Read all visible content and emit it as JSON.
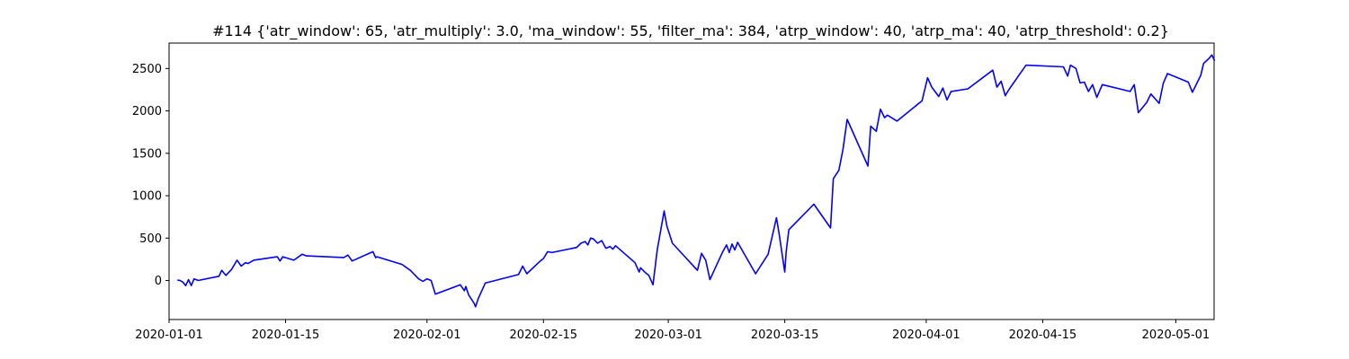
{
  "chart_data": {
    "type": "line",
    "title": "#114 {'atr_window': 65, 'atr_multiply': 3.0, 'ma_window': 55, 'filter_ma': 384, 'atrp_window': 40, 'atrp_ma': 40, 'atrp_threshold': 0.2}",
    "xlabel": "",
    "ylabel": "",
    "x_type": "date",
    "xlim": [
      "2020-01-01",
      "2020-05-03"
    ],
    "ylim": [
      -460,
      2800
    ],
    "xticks": [
      "2020-01-01",
      "2020-01-15",
      "2020-02-01",
      "2020-02-15",
      "2020-03-01",
      "2020-03-15",
      "2020-04-01",
      "2020-04-15",
      "2020-05-01"
    ],
    "yticks": [
      0,
      500,
      1000,
      1500,
      2000,
      2500
    ],
    "grid": false,
    "legend": "none",
    "series": [
      {
        "color": "#0000ff",
        "points": [
          [
            "2020-01-02T00:00",
            5
          ],
          [
            "2020-01-02T08:00",
            0
          ],
          [
            "2020-01-02T16:00",
            -20
          ],
          [
            "2020-01-03T00:00",
            -60
          ],
          [
            "2020-01-03T08:00",
            10
          ],
          [
            "2020-01-03T16:00",
            -60
          ],
          [
            "2020-01-04T00:00",
            20
          ],
          [
            "2020-01-04T12:00",
            0
          ],
          [
            "2020-01-07T00:00",
            50
          ],
          [
            "2020-01-07T08:00",
            120
          ],
          [
            "2020-01-07T20:00",
            60
          ],
          [
            "2020-01-08T12:00",
            130
          ],
          [
            "2020-01-09T04:00",
            240
          ],
          [
            "2020-01-09T16:00",
            170
          ],
          [
            "2020-01-10T04:00",
            210
          ],
          [
            "2020-01-10T12:00",
            200
          ],
          [
            "2020-01-11T04:00",
            240
          ],
          [
            "2020-01-14T00:00",
            280
          ],
          [
            "2020-01-14T08:00",
            230
          ],
          [
            "2020-01-14T16:00",
            280
          ],
          [
            "2020-01-16T00:00",
            240
          ],
          [
            "2020-01-17T00:00",
            310
          ],
          [
            "2020-01-17T12:00",
            290
          ],
          [
            "2020-01-22T00:00",
            270
          ],
          [
            "2020-01-22T12:00",
            300
          ],
          [
            "2020-01-23T00:00",
            230
          ],
          [
            "2020-01-25T12:00",
            340
          ],
          [
            "2020-01-25T20:00",
            270
          ],
          [
            "2020-01-26T00:00",
            280
          ],
          [
            "2020-01-29T00:00",
            190
          ],
          [
            "2020-01-30T00:00",
            120
          ],
          [
            "2020-01-30T12:00",
            70
          ],
          [
            "2020-01-31T00:00",
            20
          ],
          [
            "2020-01-31T12:00",
            -10
          ],
          [
            "2020-02-01T00:00",
            20
          ],
          [
            "2020-02-01T12:00",
            0
          ],
          [
            "2020-02-02T00:00",
            -160
          ],
          [
            "2020-02-05T00:00",
            -50
          ],
          [
            "2020-02-05T12:00",
            -120
          ],
          [
            "2020-02-05T16:00",
            -70
          ],
          [
            "2020-02-06T00:00",
            -170
          ],
          [
            "2020-02-06T16:00",
            -270
          ],
          [
            "2020-02-06T20:00",
            -310
          ],
          [
            "2020-02-07T04:00",
            -210
          ],
          [
            "2020-02-08T00:00",
            -30
          ],
          [
            "2020-02-12T00:00",
            70
          ],
          [
            "2020-02-12T12:00",
            170
          ],
          [
            "2020-02-13T00:00",
            80
          ],
          [
            "2020-02-14T12:00",
            220
          ],
          [
            "2020-02-15T00:00",
            260
          ],
          [
            "2020-02-15T12:00",
            340
          ],
          [
            "2020-02-16T00:00",
            330
          ],
          [
            "2020-02-19T00:00",
            390
          ],
          [
            "2020-02-19T12:00",
            440
          ],
          [
            "2020-02-20T00:00",
            460
          ],
          [
            "2020-02-20T08:00",
            420
          ],
          [
            "2020-02-20T16:00",
            500
          ],
          [
            "2020-02-21T00:00",
            490
          ],
          [
            "2020-02-21T12:00",
            440
          ],
          [
            "2020-02-22T00:00",
            470
          ],
          [
            "2020-02-22T12:00",
            380
          ],
          [
            "2020-02-23T00:00",
            400
          ],
          [
            "2020-02-23T08:00",
            370
          ],
          [
            "2020-02-23T16:00",
            410
          ],
          [
            "2020-02-26T00:00",
            210
          ],
          [
            "2020-02-26T12:00",
            100
          ],
          [
            "2020-02-26T16:00",
            150
          ],
          [
            "2020-02-27T04:00",
            100
          ],
          [
            "2020-02-27T16:00",
            60
          ],
          [
            "2020-02-28T04:00",
            -50
          ],
          [
            "2020-02-28T16:00",
            360
          ],
          [
            "2020-02-29T12:00",
            820
          ],
          [
            "2020-02-29T20:00",
            640
          ],
          [
            "2020-03-01T12:00",
            440
          ],
          [
            "2020-03-04T12:00",
            120
          ],
          [
            "2020-03-05T00:00",
            320
          ],
          [
            "2020-03-05T12:00",
            240
          ],
          [
            "2020-03-06T00:00",
            10
          ],
          [
            "2020-03-07T12:00",
            330
          ],
          [
            "2020-03-08T00:00",
            420
          ],
          [
            "2020-03-08T08:00",
            330
          ],
          [
            "2020-03-08T16:00",
            430
          ],
          [
            "2020-03-09T00:00",
            360
          ],
          [
            "2020-03-09T08:00",
            450
          ],
          [
            "2020-03-11T12:00",
            80
          ],
          [
            "2020-03-13T00:00",
            310
          ],
          [
            "2020-03-14T00:00",
            740
          ],
          [
            "2020-03-14T08:00",
            540
          ],
          [
            "2020-03-15T00:00",
            100
          ],
          [
            "2020-03-15T04:00",
            340
          ],
          [
            "2020-03-15T12:00",
            600
          ],
          [
            "2020-03-18T12:00",
            900
          ],
          [
            "2020-03-20T12:00",
            620
          ],
          [
            "2020-03-20T20:00",
            1200
          ],
          [
            "2020-03-21T12:00",
            1300
          ],
          [
            "2020-03-22T00:00",
            1550
          ],
          [
            "2020-03-22T12:00",
            1900
          ],
          [
            "2020-03-25T00:00",
            1350
          ],
          [
            "2020-03-25T08:00",
            1820
          ],
          [
            "2020-03-26T00:00",
            1760
          ],
          [
            "2020-03-26T12:00",
            2020
          ],
          [
            "2020-03-27T00:00",
            1920
          ],
          [
            "2020-03-27T08:00",
            1950
          ],
          [
            "2020-03-28T12:00",
            1880
          ],
          [
            "2020-03-31T12:00",
            2120
          ],
          [
            "2020-04-01T04:00",
            2390
          ],
          [
            "2020-04-01T16:00",
            2280
          ],
          [
            "2020-04-02T12:00",
            2170
          ],
          [
            "2020-04-03T00:00",
            2270
          ],
          [
            "2020-04-03T12:00",
            2130
          ],
          [
            "2020-04-04T00:00",
            2230
          ],
          [
            "2020-04-06T00:00",
            2260
          ],
          [
            "2020-04-09T00:00",
            2480
          ],
          [
            "2020-04-09T12:00",
            2280
          ],
          [
            "2020-04-10T00:00",
            2350
          ],
          [
            "2020-04-10T12:00",
            2180
          ],
          [
            "2020-04-11T00:00",
            2260
          ],
          [
            "2020-04-13T00:00",
            2540
          ],
          [
            "2020-04-17T12:00",
            2520
          ],
          [
            "2020-04-18T00:00",
            2410
          ],
          [
            "2020-04-18T08:00",
            2540
          ],
          [
            "2020-04-19T00:00",
            2500
          ],
          [
            "2020-04-19T12:00",
            2330
          ],
          [
            "2020-04-20T00:00",
            2340
          ],
          [
            "2020-04-20T12:00",
            2230
          ],
          [
            "2020-04-21T00:00",
            2310
          ],
          [
            "2020-04-21T12:00",
            2160
          ],
          [
            "2020-04-22T04:00",
            2310
          ],
          [
            "2020-04-25T12:00",
            2230
          ],
          [
            "2020-04-26T00:00",
            2310
          ],
          [
            "2020-04-26T12:00",
            1980
          ],
          [
            "2020-04-27T12:00",
            2100
          ],
          [
            "2020-04-28T00:00",
            2200
          ],
          [
            "2020-04-29T00:00",
            2090
          ],
          [
            "2020-04-29T12:00",
            2330
          ],
          [
            "2020-04-30T00:00",
            2440
          ],
          [
            "2020-05-02T12:00",
            2340
          ],
          [
            "2020-05-03T00:00",
            2220
          ],
          [
            "2020-05-04T00:00",
            2420
          ],
          [
            "2020-05-04T08:00",
            2560
          ],
          [
            "2020-05-05T00:00",
            2620
          ],
          [
            "2020-05-05T08:00",
            2660
          ],
          [
            "2020-05-05T16:00",
            2590
          ]
        ]
      }
    ]
  }
}
